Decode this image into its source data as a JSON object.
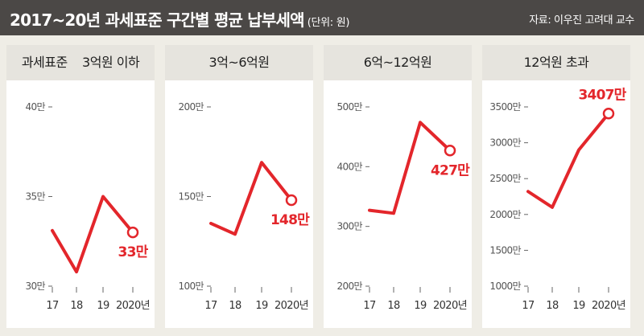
{
  "header": {
    "title": "2017~20년 과세표준 구간별 평균 납부세액",
    "unit": "(단위: 원)",
    "source": "자료: 이우진 고려대 교수"
  },
  "colors": {
    "line": "#e3262b",
    "header_bg": "#4b4846",
    "panel_head_bg": "#e6e4de",
    "page_bg": "#efede6"
  },
  "chart_data": [
    {
      "type": "line",
      "title": "과세표준    3억원 이하",
      "x": [
        "17",
        "18",
        "19",
        "2020년"
      ],
      "values": [
        33.1,
        30.8,
        35.0,
        33.0
      ],
      "ylim": [
        30,
        40
      ],
      "yticks": [
        30,
        35,
        40
      ],
      "ytick_labels": [
        "30만",
        "35만",
        "40만"
      ],
      "annotation": "33만"
    },
    {
      "type": "line",
      "title": "3억~6억원",
      "x": [
        "17",
        "18",
        "19",
        "2020년"
      ],
      "values": [
        135,
        129,
        169,
        148
      ],
      "ylim": [
        100,
        200
      ],
      "yticks": [
        100,
        150,
        200
      ],
      "ytick_labels": [
        "100만",
        "150만",
        "200만"
      ],
      "annotation": "148만"
    },
    {
      "type": "line",
      "title": "6억~12억원",
      "x": [
        "17",
        "18",
        "19",
        "2020년"
      ],
      "values": [
        327,
        322,
        474,
        427
      ],
      "ylim": [
        200,
        500
      ],
      "yticks": [
        200,
        300,
        400,
        500
      ],
      "ytick_labels": [
        "200만",
        "300만",
        "400만",
        "500만"
      ],
      "annotation": "427만"
    },
    {
      "type": "line",
      "title": "12억원 초과",
      "x": [
        "17",
        "18",
        "19",
        "2020년"
      ],
      "values": [
        2320,
        2100,
        2900,
        3407
      ],
      "ylim": [
        1000,
        3500
      ],
      "yticks": [
        1000,
        1500,
        2000,
        2500,
        3000,
        3500
      ],
      "ytick_labels": [
        "1000만",
        "1500만",
        "2000만",
        "2500만",
        "3000만",
        "3500만"
      ],
      "annotation": "3407만"
    }
  ]
}
